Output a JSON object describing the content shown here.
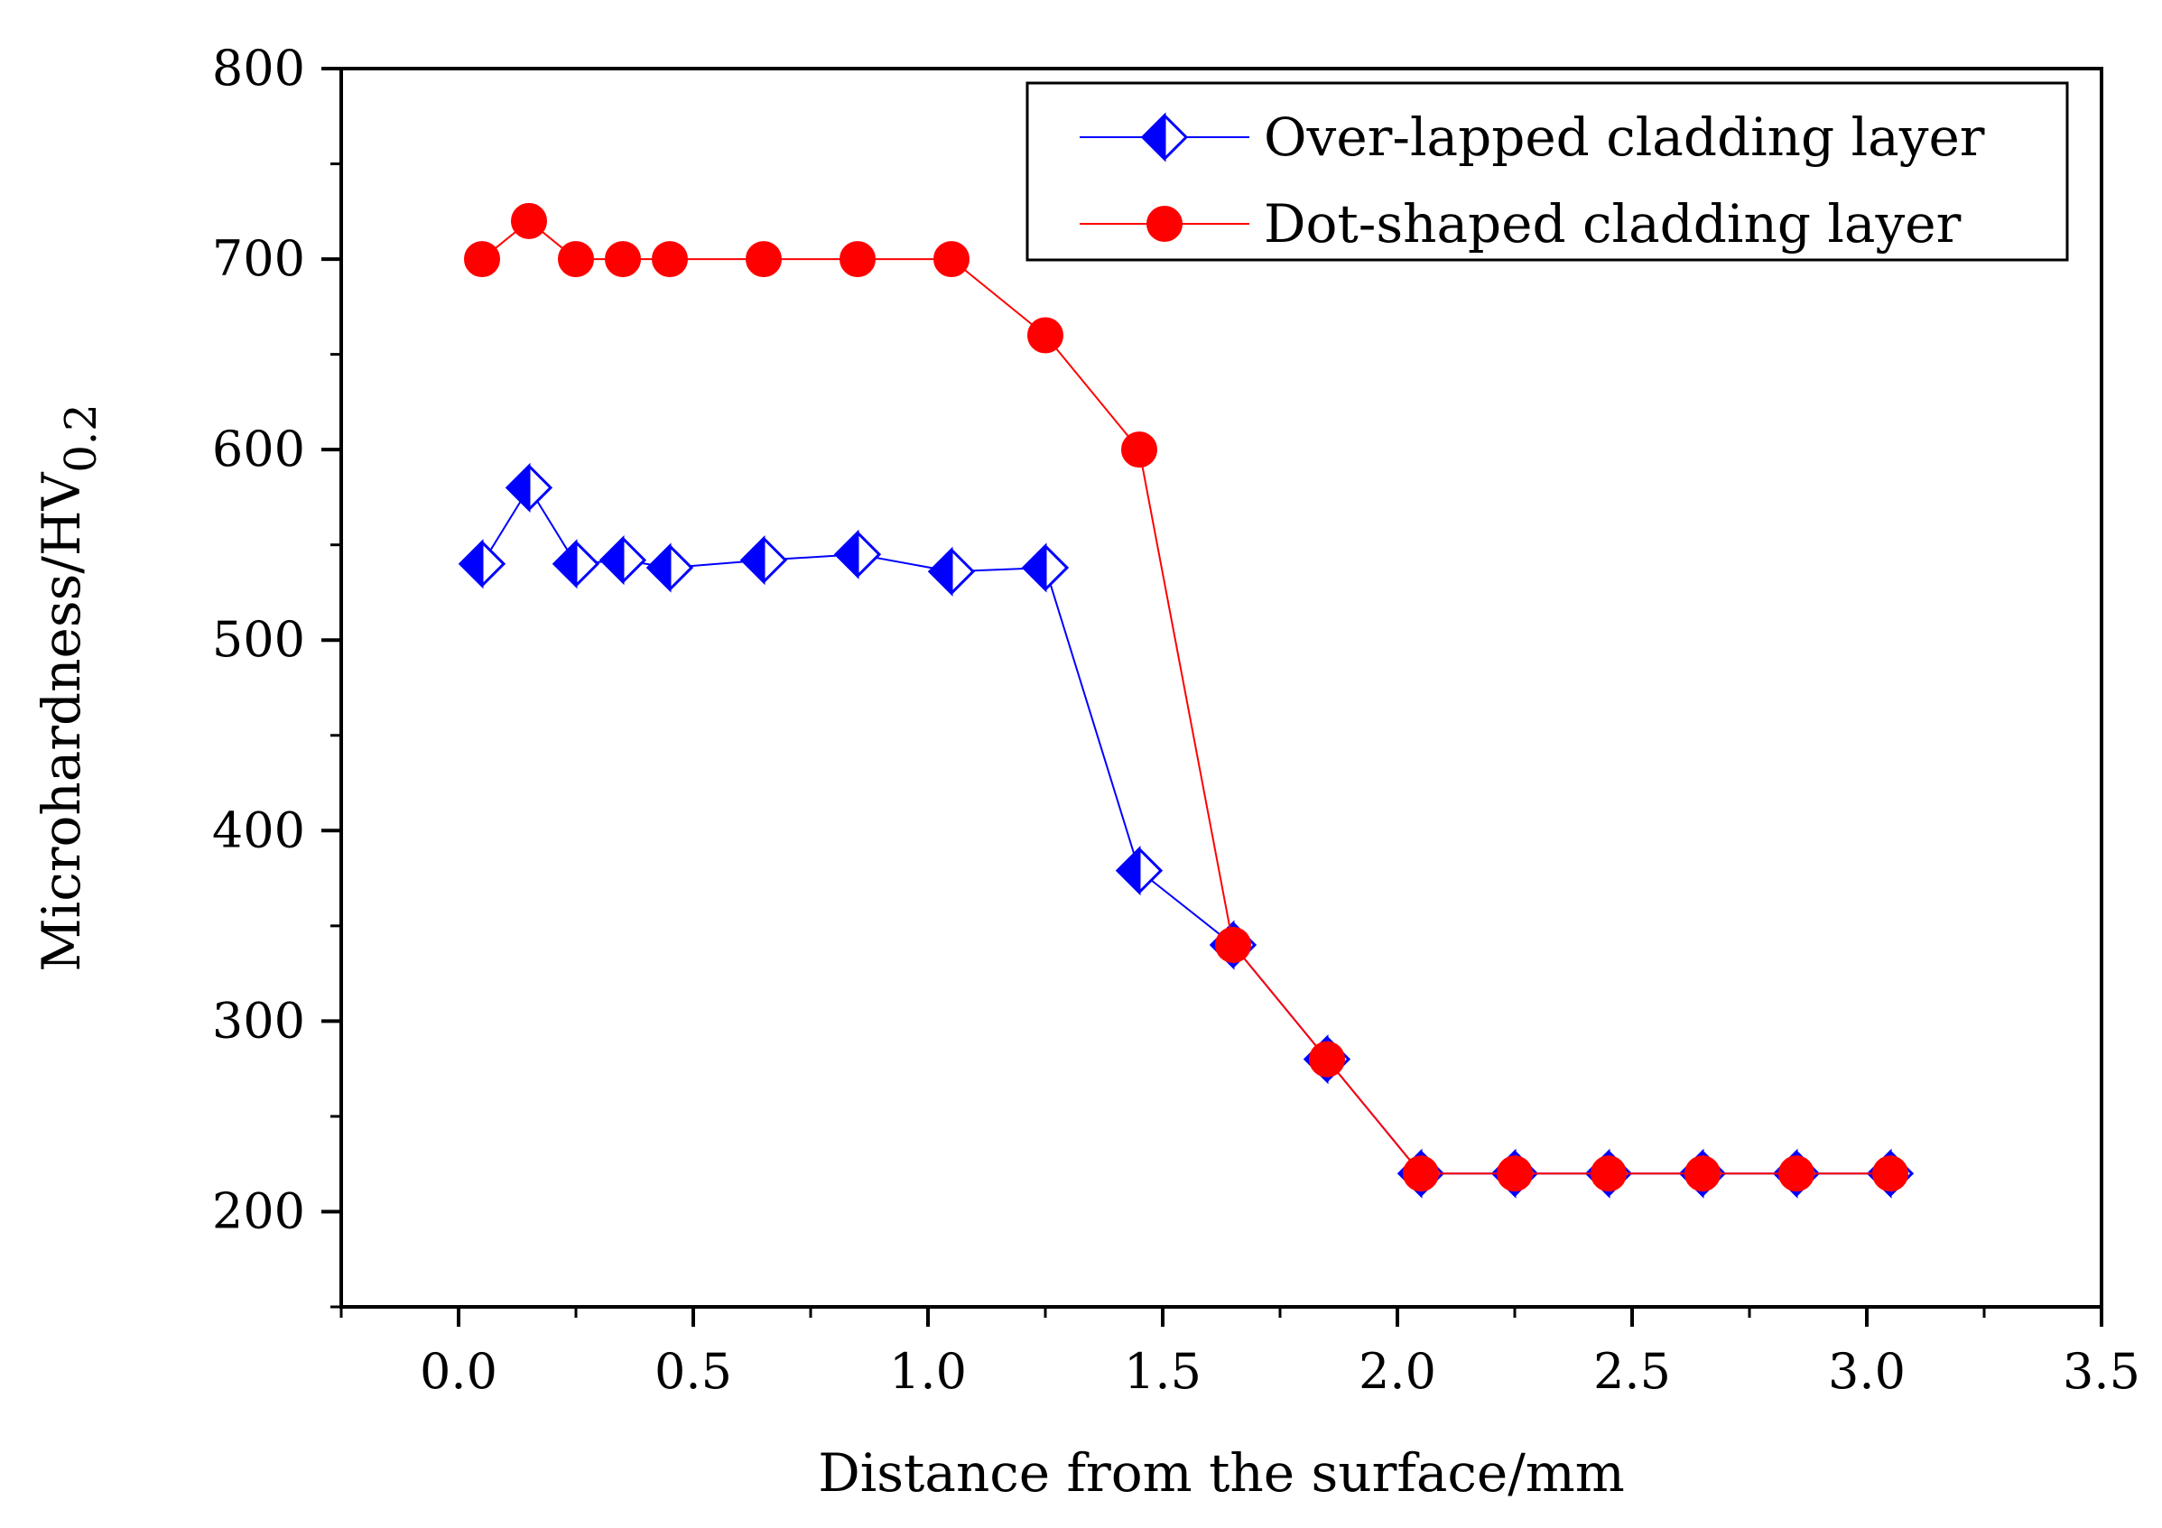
{
  "chart_data": {
    "type": "line",
    "title": "",
    "xlabel": "Distance from the surface/mm",
    "ylabel": "Microhardness/HV",
    "ylabel_subscript": "0.2",
    "xlim": [
      -0.25,
      3.5
    ],
    "ylim": [
      150,
      800
    ],
    "x_ticks": [
      0.0,
      0.5,
      1.0,
      1.5,
      2.0,
      2.5,
      3.0,
      3.5
    ],
    "x_tick_labels": [
      "0.0",
      "0.5",
      "1.0",
      "1.5",
      "2.0",
      "2.5",
      "3.0",
      "3.5"
    ],
    "y_ticks": [
      200,
      300,
      400,
      500,
      600,
      700,
      800
    ],
    "y_tick_labels": [
      "200",
      "300",
      "400",
      "500",
      "600",
      "700",
      "800"
    ],
    "grid": false,
    "legend_position": "top-right",
    "series": [
      {
        "name": "Over-lapped cladding layer",
        "color": "#0000ff",
        "marker": "half-filled-diamond",
        "x": [
          0.05,
          0.15,
          0.25,
          0.35,
          0.45,
          0.65,
          0.85,
          1.05,
          1.25,
          1.45,
          1.65,
          1.85,
          2.05,
          2.25,
          2.45,
          2.65,
          2.85,
          3.05
        ],
        "values": [
          540,
          580,
          540,
          542,
          538,
          542,
          545,
          536,
          538,
          379,
          340,
          280,
          220,
          220,
          220,
          220,
          220,
          220
        ]
      },
      {
        "name": "Dot-shaped cladding layer",
        "color": "#ff0000",
        "marker": "circle",
        "x": [
          0.05,
          0.15,
          0.25,
          0.35,
          0.45,
          0.65,
          0.85,
          1.05,
          1.25,
          1.45,
          1.65,
          1.85,
          2.05,
          2.25,
          2.45,
          2.65,
          2.85,
          3.05
        ],
        "values": [
          700,
          720,
          700,
          700,
          700,
          700,
          700,
          700,
          660,
          600,
          340,
          280,
          220,
          220,
          220,
          220,
          220,
          220
        ]
      }
    ]
  }
}
